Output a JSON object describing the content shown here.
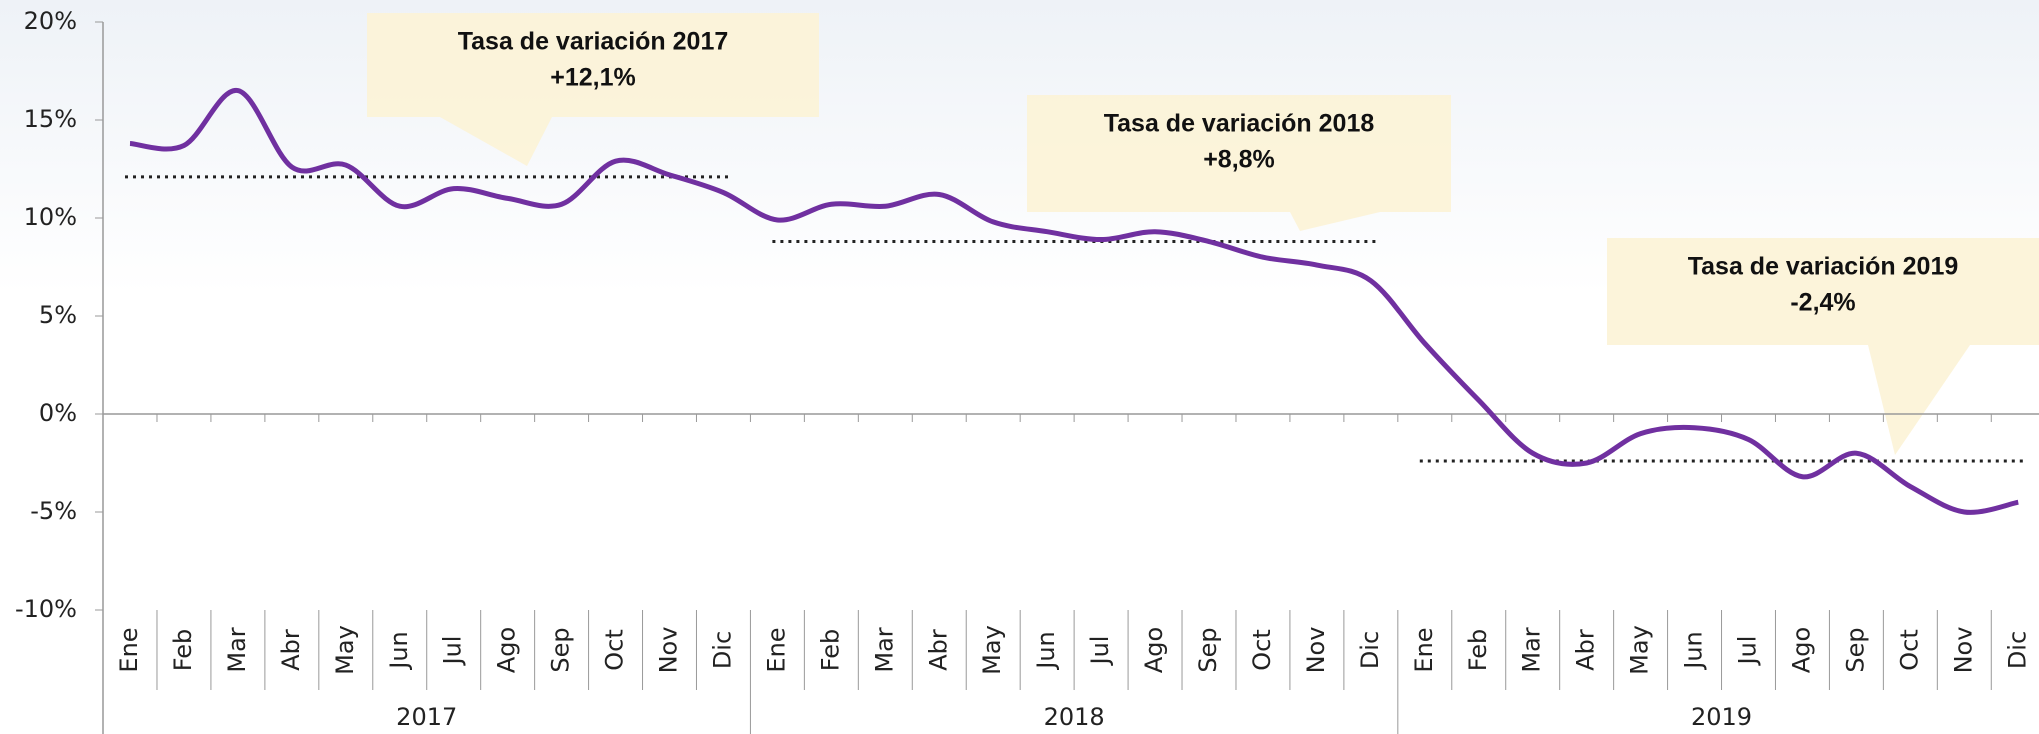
{
  "chart_data": {
    "type": "line",
    "categories": [
      "Ene",
      "Feb",
      "Mar",
      "Abr",
      "May",
      "Jun",
      "Jul",
      "Ago",
      "Sep",
      "Oct",
      "Nov",
      "Dic",
      "Ene",
      "Feb",
      "Mar",
      "Abr",
      "May",
      "Jun",
      "Jul",
      "Ago",
      "Sep",
      "Oct",
      "Nov",
      "Dic",
      "Ene",
      "Feb",
      "Mar",
      "Abr",
      "May",
      "Jun",
      "Jul",
      "Ago",
      "Sep",
      "Oct",
      "Nov",
      "Dic"
    ],
    "x_groups": [
      "2017",
      "2018",
      "2019"
    ],
    "values": [
      13.8,
      13.7,
      16.5,
      12.6,
      12.7,
      10.6,
      11.5,
      11.0,
      10.7,
      12.9,
      12.2,
      11.3,
      9.9,
      10.7,
      10.6,
      11.2,
      9.8,
      9.3,
      8.9,
      9.3,
      8.8,
      8.0,
      7.6,
      6.8,
      3.6,
      0.7,
      -2.0,
      -2.5,
      -1.0,
      -0.7,
      -1.3,
      -3.2,
      -2.0,
      -3.7,
      -5.0,
      -4.5
    ],
    "color": "#7030a0",
    "ylim": [
      -10,
      20
    ],
    "yticks": [
      {
        "value": -10,
        "label": "-10%"
      },
      {
        "value": -5,
        "label": "-5%"
      },
      {
        "value": 0,
        "label": "0%"
      },
      {
        "value": 5,
        "label": "5%"
      },
      {
        "value": 10,
        "label": "10%"
      },
      {
        "value": 15,
        "label": "15%"
      },
      {
        "value": 20,
        "label": "20%"
      }
    ],
    "annotations": [
      {
        "title": "Tasa de variación 2017",
        "label": "+12,1%",
        "value": 12.1
      },
      {
        "title": "Tasa de variación 2018",
        "label": "+8,8%",
        "value": 8.8
      },
      {
        "title": "Tasa de variación 2019",
        "label": "-2,4%",
        "value": -2.4
      }
    ]
  }
}
